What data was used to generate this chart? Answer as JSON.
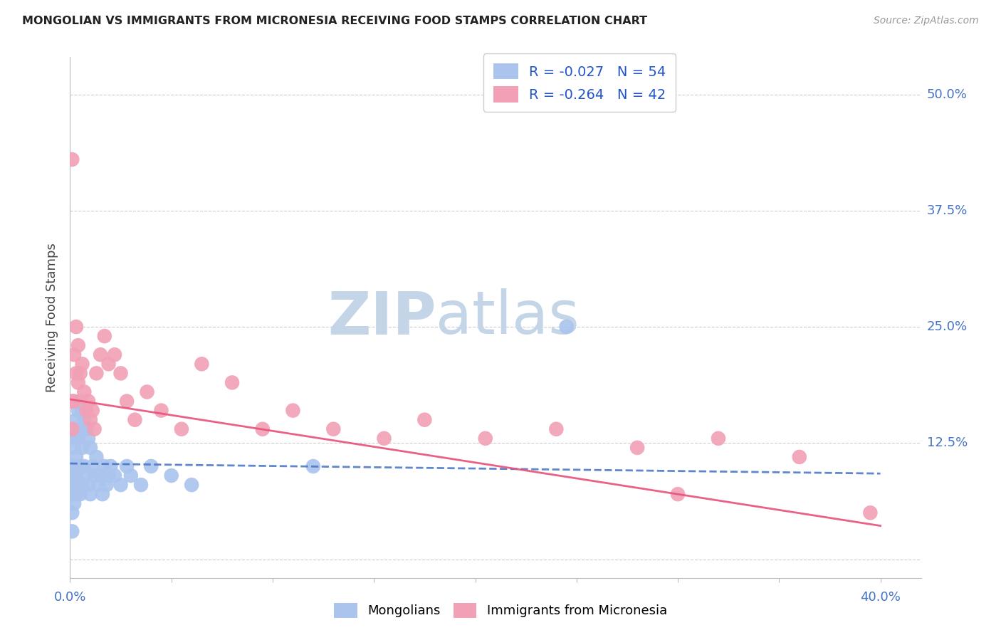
{
  "title": "MONGOLIAN VS IMMIGRANTS FROM MICRONESIA RECEIVING FOOD STAMPS CORRELATION CHART",
  "source": "Source: ZipAtlas.com",
  "ylabel": "Receiving Food Stamps",
  "xlim": [
    0.0,
    0.42
  ],
  "ylim": [
    -0.02,
    0.54
  ],
  "y_ticks": [
    0.0,
    0.125,
    0.25,
    0.375,
    0.5
  ],
  "y_tick_labels": [
    "",
    "12.5%",
    "25.0%",
    "37.5%",
    "50.0%"
  ],
  "x_tick_left": "0.0%",
  "x_tick_right": "40.0%",
  "blue_R": -0.027,
  "blue_N": 54,
  "pink_R": -0.264,
  "pink_N": 42,
  "blue_color": "#aac4ee",
  "pink_color": "#f2a0b5",
  "blue_line_color": "#4472c4",
  "pink_line_color": "#e8507a",
  "tick_label_color": "#4472c4",
  "grid_color": "#cccccc",
  "title_color": "#222222",
  "watermark_zip_color": "#c5d5e8",
  "watermark_atlas_color": "#c5d5e8",
  "legend_text_color": "#2255cc",
  "source_color": "#999999",
  "blue_line_intercept": 0.103,
  "blue_line_slope": -0.027,
  "pink_line_intercept": 0.172,
  "pink_line_slope": -0.34,
  "blue_x": [
    0.001,
    0.001,
    0.001,
    0.001,
    0.001,
    0.002,
    0.002,
    0.002,
    0.002,
    0.002,
    0.002,
    0.003,
    0.003,
    0.003,
    0.003,
    0.003,
    0.004,
    0.004,
    0.004,
    0.005,
    0.005,
    0.005,
    0.005,
    0.006,
    0.006,
    0.006,
    0.007,
    0.007,
    0.008,
    0.008,
    0.009,
    0.009,
    0.01,
    0.01,
    0.011,
    0.012,
    0.013,
    0.014,
    0.015,
    0.016,
    0.017,
    0.018,
    0.019,
    0.02,
    0.022,
    0.025,
    0.028,
    0.03,
    0.035,
    0.04,
    0.05,
    0.06,
    0.12,
    0.245
  ],
  "blue_y": [
    0.08,
    0.1,
    0.07,
    0.05,
    0.03,
    0.14,
    0.12,
    0.1,
    0.09,
    0.08,
    0.06,
    0.15,
    0.13,
    0.11,
    0.09,
    0.07,
    0.16,
    0.13,
    0.08,
    0.17,
    0.14,
    0.1,
    0.07,
    0.16,
    0.12,
    0.08,
    0.15,
    0.1,
    0.14,
    0.09,
    0.13,
    0.08,
    0.12,
    0.07,
    0.1,
    0.09,
    0.11,
    0.08,
    0.09,
    0.07,
    0.1,
    0.08,
    0.09,
    0.1,
    0.09,
    0.08,
    0.1,
    0.09,
    0.08,
    0.1,
    0.09,
    0.08,
    0.1,
    0.25
  ],
  "pink_x": [
    0.001,
    0.001,
    0.002,
    0.002,
    0.003,
    0.003,
    0.004,
    0.004,
    0.005,
    0.006,
    0.007,
    0.008,
    0.009,
    0.01,
    0.011,
    0.012,
    0.013,
    0.015,
    0.017,
    0.019,
    0.022,
    0.025,
    0.028,
    0.032,
    0.038,
    0.045,
    0.055,
    0.065,
    0.08,
    0.095,
    0.11,
    0.13,
    0.155,
    0.175,
    0.205,
    0.24,
    0.28,
    0.32,
    0.36,
    0.395,
    0.3,
    0.001
  ],
  "pink_y": [
    0.17,
    0.14,
    0.22,
    0.17,
    0.25,
    0.2,
    0.23,
    0.19,
    0.2,
    0.21,
    0.18,
    0.16,
    0.17,
    0.15,
    0.16,
    0.14,
    0.2,
    0.22,
    0.24,
    0.21,
    0.22,
    0.2,
    0.17,
    0.15,
    0.18,
    0.16,
    0.14,
    0.21,
    0.19,
    0.14,
    0.16,
    0.14,
    0.13,
    0.15,
    0.13,
    0.14,
    0.12,
    0.13,
    0.11,
    0.05,
    0.07,
    0.43
  ],
  "figsize": [
    14.06,
    8.92
  ],
  "dpi": 100
}
